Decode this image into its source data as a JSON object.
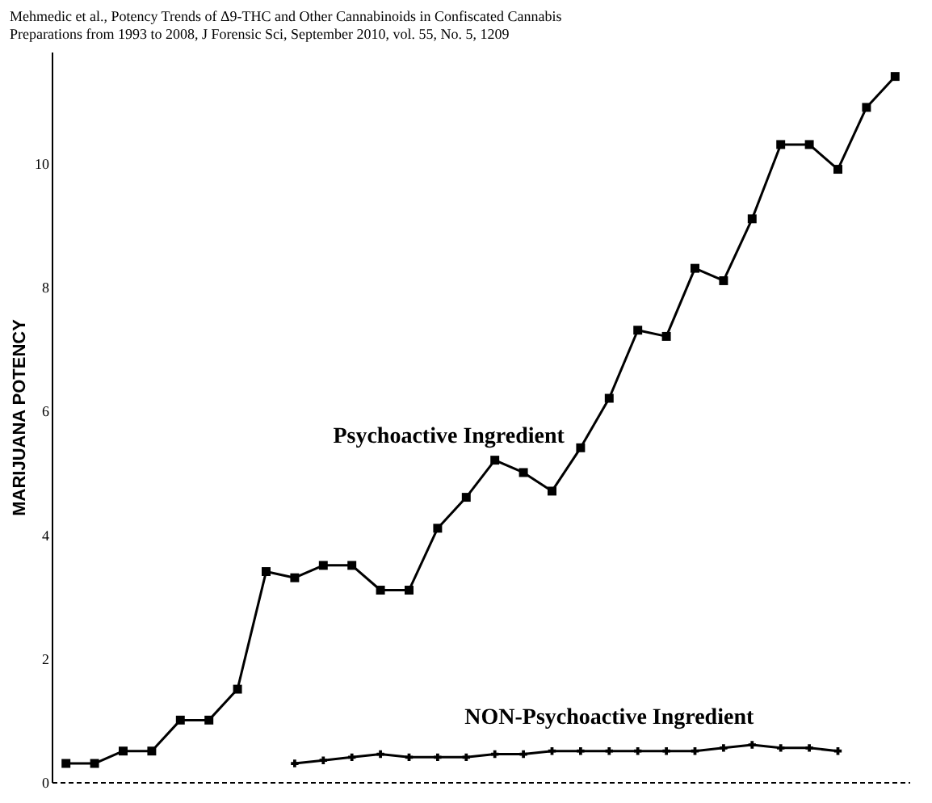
{
  "chart_data": {
    "type": "line",
    "ylabel": "MARIJUANA POTENCY",
    "annotations": [
      "Mehmedic et al., Potency Trends of Δ9-THC and Other Cannabinoids in Confiscated Cannabis Preparations from 1993 to 2008, J Forensic Sci, September 2010, vol. 55, No. 5, 1209"
    ],
    "categories": [
      null,
      null,
      null,
      null,
      null,
      null,
      null,
      null,
      null,
      null,
      null,
      null,
      null,
      null,
      null,
      null,
      null,
      null,
      null,
      null,
      null,
      null,
      null,
      null,
      null,
      null,
      null,
      null,
      null,
      null
    ],
    "series": [
      {
        "name": "Psychoactive Ingredient",
        "color": "#000000",
        "marker": "square",
        "values": [
          0.3,
          0.3,
          0.5,
          0.5,
          1.0,
          1.0,
          1.5,
          3.4,
          3.3,
          3.5,
          3.5,
          3.1,
          3.1,
          4.1,
          4.6,
          5.2,
          5.0,
          4.7,
          5.4,
          6.2,
          7.3,
          7.2,
          8.3,
          8.1,
          9.1,
          10.3,
          10.3,
          9.9,
          10.9,
          11.4
        ]
      },
      {
        "name": "NON-Psychoactive Ingredient",
        "color": "#000000",
        "marker": "cross",
        "values": [
          null,
          null,
          null,
          null,
          null,
          null,
          null,
          null,
          0.3,
          0.35,
          0.4,
          0.45,
          0.4,
          0.4,
          0.4,
          0.45,
          0.45,
          0.5,
          0.5,
          0.5,
          0.5,
          0.5,
          0.5,
          0.55,
          0.6,
          0.55,
          0.55,
          0.5,
          null,
          null
        ]
      }
    ],
    "ylim": [
      0,
      11.8
    ],
    "yticks": [
      0,
      2,
      4,
      6,
      8,
      10
    ],
    "grid": false,
    "legend": false
  }
}
